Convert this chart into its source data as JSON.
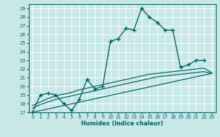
{
  "xlabel": "Humidex (Indice chaleur)",
  "bg_color": "#c8e8e8",
  "line_color": "#006060",
  "grid_color": "#b0d0d0",
  "xlim": [
    -0.5,
    23.5
  ],
  "ylim": [
    17,
    29.5
  ],
  "yticks": [
    17,
    18,
    19,
    20,
    21,
    22,
    23,
    24,
    25,
    26,
    27,
    28,
    29
  ],
  "xticks": [
    0,
    1,
    2,
    3,
    4,
    5,
    6,
    7,
    8,
    9,
    10,
    11,
    12,
    13,
    14,
    15,
    16,
    17,
    18,
    19,
    20,
    21,
    22,
    23
  ],
  "series": [
    {
      "x": [
        0,
        1,
        2,
        3,
        4,
        5,
        6,
        7,
        8,
        9,
        10,
        11,
        12,
        13,
        14,
        15,
        16,
        17,
        18,
        19,
        20,
        21,
        22
      ],
      "y": [
        17.0,
        19.0,
        19.2,
        19.0,
        18.0,
        17.2,
        18.5,
        20.8,
        19.7,
        20.0,
        25.2,
        25.5,
        26.7,
        26.5,
        29.0,
        28.0,
        27.4,
        26.5,
        26.5,
        22.2,
        22.5,
        23.0,
        23.0
      ],
      "marker": "+",
      "markersize": 4,
      "linewidth": 1.0
    },
    {
      "x": [
        0,
        1,
        2,
        3,
        4,
        5,
        6,
        7,
        8,
        9,
        10,
        11,
        12,
        13,
        14,
        15,
        16,
        17,
        18,
        19,
        20,
        21,
        22,
        23
      ],
      "y": [
        17.8,
        18.2,
        18.6,
        18.9,
        19.1,
        19.3,
        19.6,
        19.8,
        20.0,
        20.2,
        20.4,
        20.6,
        20.8,
        21.0,
        21.2,
        21.4,
        21.5,
        21.6,
        21.7,
        21.8,
        21.9,
        22.0,
        22.1,
        21.6
      ],
      "marker": null,
      "markersize": 0,
      "linewidth": 0.9
    },
    {
      "x": [
        0,
        1,
        2,
        3,
        4,
        5,
        6,
        7,
        8,
        9,
        10,
        11,
        12,
        13,
        14,
        15,
        16,
        17,
        18,
        19,
        20,
        21,
        22,
        23
      ],
      "y": [
        17.5,
        17.9,
        18.2,
        18.5,
        18.7,
        18.9,
        19.1,
        19.3,
        19.5,
        19.7,
        19.9,
        20.1,
        20.3,
        20.5,
        20.7,
        20.9,
        21.1,
        21.2,
        21.3,
        21.4,
        21.5,
        21.6,
        21.7,
        21.5
      ],
      "marker": null,
      "markersize": 0,
      "linewidth": 0.9
    },
    {
      "x": [
        0,
        23
      ],
      "y": [
        17.0,
        21.5
      ],
      "marker": null,
      "markersize": 0,
      "linewidth": 0.9
    }
  ]
}
